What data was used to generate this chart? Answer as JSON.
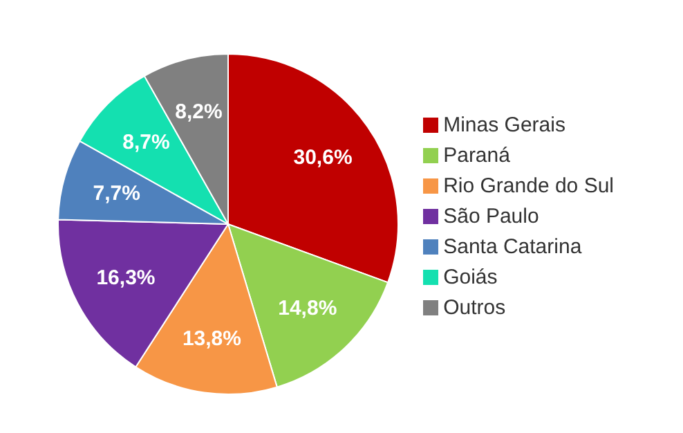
{
  "chart_data": {
    "type": "pie",
    "categories": [
      "Minas Gerais",
      "Paraná",
      "Rio Grande do Sul",
      "São Paulo",
      "Santa Catarina",
      "Goiás",
      "Outros"
    ],
    "values": [
      30.6,
      14.8,
      13.8,
      16.3,
      7.7,
      8.7,
      8.2
    ],
    "value_labels": [
      "30,6%",
      "14,8%",
      "13,8%",
      "16,3%",
      "7,7%",
      "8,7%",
      "8,2%"
    ],
    "colors": [
      "#c00000",
      "#92d050",
      "#f79646",
      "#7030a0",
      "#4f81bd",
      "#14e0b0",
      "#808080"
    ],
    "legend": "right"
  }
}
